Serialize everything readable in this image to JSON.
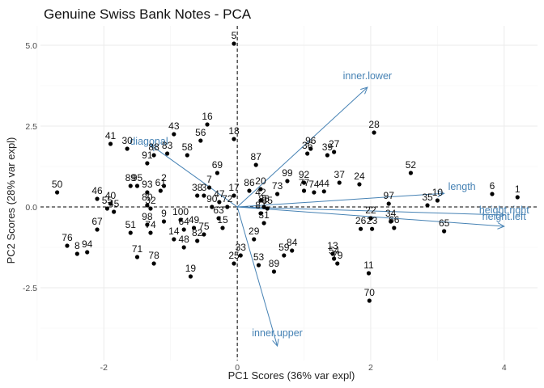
{
  "chart_data": {
    "type": "scatter",
    "title": "Genuine Swiss Bank Notes - PCA",
    "xlabel": "PC1 Scores (36% var expl)",
    "ylabel": "PC2 Scores (28% var expl)",
    "xlim": [
      -2.95,
      4.5
    ],
    "ylim": [
      -4.75,
      5.6
    ],
    "xticks": [
      -2,
      0,
      2,
      4
    ],
    "yticks": [
      -2.5,
      0.0,
      2.5,
      5.0
    ],
    "ytick_labels": [
      "-2.5",
      "0.0",
      "2.5",
      "5.0"
    ],
    "grid": true,
    "reference_lines": {
      "x": 0,
      "y": 0,
      "style": "dashed"
    },
    "colors": {
      "points": "#000000",
      "vectors": "#4682b4",
      "grid": "#ebebeb"
    },
    "points": [
      {
        "label": "1",
        "x": 4.2,
        "y": 0.3
      },
      {
        "label": "6",
        "x": 3.82,
        "y": 0.4
      },
      {
        "label": "52",
        "x": 2.6,
        "y": 1.05
      },
      {
        "label": "10",
        "x": 3.0,
        "y": 0.2
      },
      {
        "label": "35",
        "x": 2.85,
        "y": 0.05
      },
      {
        "label": "97",
        "x": 2.27,
        "y": 0.1
      },
      {
        "label": "22",
        "x": 2.0,
        "y": -0.35
      },
      {
        "label": "34",
        "x": 2.3,
        "y": -0.45
      },
      {
        "label": "66",
        "x": 2.35,
        "y": -0.65
      },
      {
        "label": "65",
        "x": 3.1,
        "y": -0.75
      },
      {
        "label": "26",
        "x": 1.85,
        "y": -0.68
      },
      {
        "label": "23",
        "x": 2.02,
        "y": -0.68
      },
      {
        "label": "28",
        "x": 2.05,
        "y": 2.3
      },
      {
        "label": "24",
        "x": 1.83,
        "y": 0.7
      },
      {
        "label": "13",
        "x": 1.43,
        "y": -1.45
      },
      {
        "label": "54",
        "x": 1.45,
        "y": -1.6
      },
      {
        "label": "79",
        "x": 1.5,
        "y": -1.75
      },
      {
        "label": "11",
        "x": 1.97,
        "y": -2.05
      },
      {
        "label": "70",
        "x": 1.98,
        "y": -2.9
      },
      {
        "label": "84",
        "x": 0.82,
        "y": -1.35
      },
      {
        "label": "59",
        "x": 0.7,
        "y": -1.5
      },
      {
        "label": "89",
        "x": 0.55,
        "y": -2.0
      },
      {
        "label": "53",
        "x": 0.32,
        "y": -1.8
      },
      {
        "label": "33",
        "x": 0.05,
        "y": -1.5
      },
      {
        "label": "25",
        "x": -0.05,
        "y": -1.75
      },
      {
        "label": "29",
        "x": 0.25,
        "y": -1.0
      },
      {
        "label": "31",
        "x": 0.4,
        "y": -0.5
      },
      {
        "label": "85",
        "x": 0.45,
        "y": -0.05
      },
      {
        "label": "87",
        "x": 0.28,
        "y": 1.3
      },
      {
        "label": "86",
        "x": 0.18,
        "y": 0.5
      },
      {
        "label": "20",
        "x": 0.35,
        "y": 0.55
      },
      {
        "label": "42",
        "x": 0.35,
        "y": 0.2
      },
      {
        "label": "73",
        "x": 0.6,
        "y": 0.4
      },
      {
        "label": "99",
        "x": 0.75,
        "y": 0.8
      },
      {
        "label": "92",
        "x": 1.0,
        "y": 0.75
      },
      {
        "label": "77",
        "x": 1.0,
        "y": 0.5
      },
      {
        "label": "74",
        "x": 1.15,
        "y": 0.45
      },
      {
        "label": "44",
        "x": 1.3,
        "y": 0.48
      },
      {
        "label": "37",
        "x": 1.53,
        "y": 0.75
      },
      {
        "label": "96",
        "x": 1.1,
        "y": 1.8
      },
      {
        "label": "36",
        "x": 1.05,
        "y": 1.65
      },
      {
        "label": "39",
        "x": 1.35,
        "y": 1.6
      },
      {
        "label": "27",
        "x": 1.45,
        "y": 1.7
      },
      {
        "label": "17",
        "x": -0.05,
        "y": 0.35
      },
      {
        "label": "47",
        "x": -0.27,
        "y": 0.15
      },
      {
        "label": "72",
        "x": -0.15,
        "y": 0.0
      },
      {
        "label": "90",
        "x": -0.38,
        "y": 0.0
      },
      {
        "label": "63",
        "x": -0.28,
        "y": -0.35
      },
      {
        "label": "15",
        "x": -0.22,
        "y": -0.65
      },
      {
        "label": "86b",
        "text": "86",
        "x": 0.4,
        "y": 0.0
      },
      {
        "label": "87b",
        "text": "87",
        "x": 0.35,
        "y": -0.2
      },
      {
        "label": "2",
        "x": -1.1,
        "y": 0.65
      },
      {
        "label": "61",
        "x": -1.15,
        "y": 0.5
      },
      {
        "label": "91",
        "x": -1.35,
        "y": 1.35
      },
      {
        "label": "83",
        "x": -1.05,
        "y": 1.65
      },
      {
        "label": "88",
        "x": -1.25,
        "y": 1.6
      },
      {
        "label": "58",
        "x": -0.75,
        "y": 1.6
      },
      {
        "label": "43",
        "x": -0.95,
        "y": 2.25
      },
      {
        "label": "16",
        "x": -0.45,
        "y": 2.55
      },
      {
        "label": "56",
        "x": -0.55,
        "y": 2.05
      },
      {
        "label": "18",
        "x": -0.05,
        "y": 2.1
      },
      {
        "label": "69",
        "x": -0.3,
        "y": 1.05
      },
      {
        "label": "7",
        "x": -0.42,
        "y": 0.6
      },
      {
        "label": "38",
        "x": -0.6,
        "y": 0.35
      },
      {
        "label": "3",
        "x": -0.5,
        "y": 0.35
      },
      {
        "label": "41",
        "x": -1.9,
        "y": 1.95
      },
      {
        "label": "30",
        "x": -1.65,
        "y": 1.8
      },
      {
        "label": "89b",
        "text": "89",
        "x": -1.6,
        "y": 0.65
      },
      {
        "label": "95",
        "x": -1.5,
        "y": 0.65
      },
      {
        "label": "93",
        "x": -1.35,
        "y": 0.45
      },
      {
        "label": "80",
        "x": -1.35,
        "y": 0.05
      },
      {
        "label": "32",
        "x": -1.3,
        "y": -0.05
      },
      {
        "label": "50",
        "x": -2.7,
        "y": 0.45
      },
      {
        "label": "46",
        "x": -2.1,
        "y": 0.25
      },
      {
        "label": "40",
        "x": -1.9,
        "y": 0.1
      },
      {
        "label": "55",
        "x": -1.95,
        "y": -0.05
      },
      {
        "label": "45",
        "x": -1.85,
        "y": -0.15
      },
      {
        "label": "67",
        "x": -2.1,
        "y": -0.7
      },
      {
        "label": "76",
        "x": -2.55,
        "y": -1.2
      },
      {
        "label": "8",
        "x": -2.4,
        "y": -1.45
      },
      {
        "label": "94",
        "x": -2.25,
        "y": -1.4
      },
      {
        "label": "51",
        "x": -1.6,
        "y": -0.8
      },
      {
        "label": "71",
        "x": -1.5,
        "y": -1.55
      },
      {
        "label": "74b",
        "text": "74",
        "x": -1.3,
        "y": -0.8
      },
      {
        "label": "78",
        "x": -1.25,
        "y": -1.75
      },
      {
        "label": "98",
        "x": -1.35,
        "y": -0.55
      },
      {
        "label": "9",
        "x": -1.1,
        "y": -0.45
      },
      {
        "label": "100",
        "x": -0.85,
        "y": -0.4
      },
      {
        "label": "14",
        "x": -0.95,
        "y": -1.0
      },
      {
        "label": "64",
        "x": -0.8,
        "y": -0.7
      },
      {
        "label": "49",
        "x": -0.65,
        "y": -0.65
      },
      {
        "label": "48",
        "x": -0.8,
        "y": -1.25
      },
      {
        "label": "82",
        "x": -0.6,
        "y": -1.05
      },
      {
        "label": "75",
        "x": -0.5,
        "y": -0.85
      },
      {
        "label": "19",
        "x": -0.7,
        "y": -2.15
      },
      {
        "label": "5",
        "x": -0.05,
        "y": 5.05
      }
    ],
    "vectors": [
      {
        "name": "diagonal",
        "x": -1.3,
        "y": 1.92
      },
      {
        "name": "inner.lower",
        "x": 1.95,
        "y": 3.7
      },
      {
        "name": "length",
        "x": 3.1,
        "y": 0.42
      },
      {
        "name": "height.right",
        "x": 4.0,
        "y": -0.25
      },
      {
        "name": "height.left",
        "x": 4.0,
        "y": -0.6
      },
      {
        "name": "inner.upper",
        "x": 0.6,
        "y": -4.3
      }
    ]
  }
}
